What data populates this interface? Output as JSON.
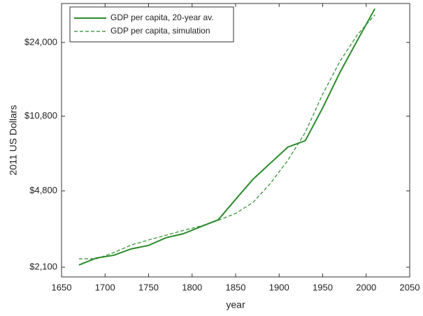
{
  "chart_data": {
    "type": "line",
    "x_label": "year",
    "y_label": "2011 US Dollars",
    "x": [
      1670,
      1690,
      1710,
      1730,
      1750,
      1770,
      1790,
      1810,
      1830,
      1850,
      1870,
      1890,
      1910,
      1930,
      1950,
      1970,
      1990,
      2010
    ],
    "series": [
      {
        "name": "GDP per capita, 20-year av.",
        "color": "#2a8a2a",
        "dash": false,
        "values": [
          2150,
          2320,
          2390,
          2560,
          2660,
          2890,
          3020,
          3260,
          3510,
          4380,
          5450,
          6490,
          7720,
          8270,
          11800,
          17400,
          24600,
          34600
        ]
      },
      {
        "name": "GDP per capita, simulation",
        "color": "#2a8a2a",
        "dash": true,
        "values": [
          2300,
          2300,
          2460,
          2670,
          2820,
          2970,
          3130,
          3280,
          3490,
          3760,
          4240,
          5210,
          6690,
          9050,
          13700,
          19600,
          26100,
          32400
        ]
      }
    ],
    "xlim": [
      1650,
      2050
    ],
    "xticks": [
      1650,
      1700,
      1750,
      1800,
      1850,
      1900,
      1950,
      2000,
      2050
    ],
    "ylim": [
      1890,
      36600
    ],
    "y_log": true,
    "yticks": [
      {
        "value": 2100,
        "label": "$2,100"
      },
      {
        "value": 4800,
        "label": "$4,800"
      },
      {
        "value": 10800,
        "label": "$10,800"
      },
      {
        "value": 24000,
        "label": "$24,000"
      }
    ],
    "legend": "upper-left"
  }
}
